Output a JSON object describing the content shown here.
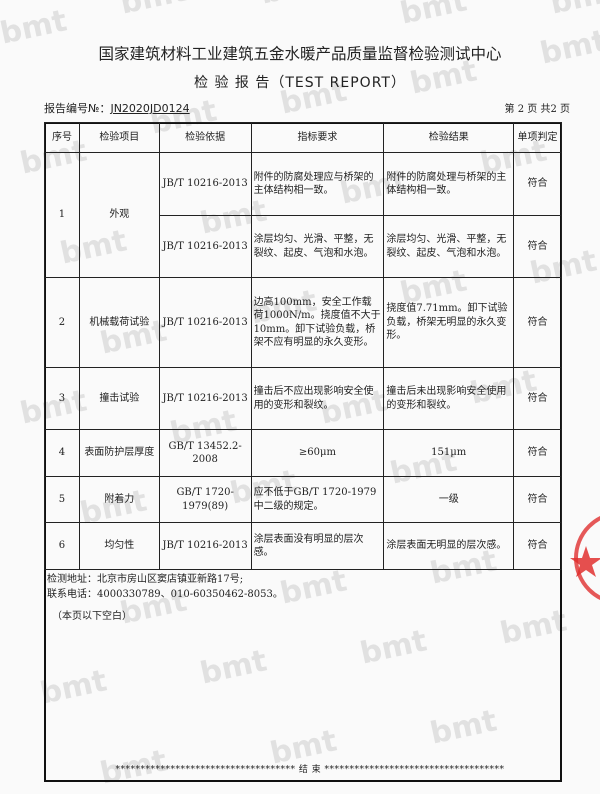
{
  "header": {
    "title": "国家建筑材料工业建筑五金水暖产品质量监督检验测试中心",
    "subtitle": "检 验 报 告（TEST REPORT）",
    "report_no_label": "报告编号№：",
    "report_no": "JN2020JD0124",
    "page_info": "第 2 页 共2 页"
  },
  "table": {
    "headers": [
      "序号",
      "检验项目",
      "检验依据",
      "指标要求",
      "检验结果",
      "单项判定"
    ],
    "rows": [
      {
        "no": "1",
        "item": "外观",
        "sub": [
          {
            "basis": "JB/T 10216-2013",
            "req": "附件的防腐处理应与桥架的主体结构相一致。",
            "result": "附件的防腐处理与桥架的主体结构相一致。",
            "verdict": "符合"
          },
          {
            "basis": "JB/T 10216-2013",
            "req": "涂层均匀、光滑、平整，无裂纹、起皮、气泡和水泡。",
            "result": "涂层均匀、光滑、平整，无裂纹、起皮、气泡和水泡。",
            "verdict": "符合"
          }
        ]
      },
      {
        "no": "2",
        "item": "机械载荷试验",
        "basis": "JB/T 10216-2013",
        "req": "边高100mm，安全工作载荷1000N/m。挠度值不大于10mm。卸下试验负载，桥架不应有明显的永久变形。",
        "result": "挠度值7.71mm。卸下试验负载，桥架无明显的永久变形。",
        "verdict": "符合"
      },
      {
        "no": "3",
        "item": "撞击试验",
        "basis": "JB/T 10216-2013",
        "req": "撞击后不应出现影响安全使用的变形和裂纹。",
        "result": "撞击后未出现影响安全使用的变形和裂纹。",
        "verdict": "符合"
      },
      {
        "no": "4",
        "item": "表面防护层厚度",
        "basis": "GB/T 13452.2-2008",
        "req": "≥60μm",
        "result": "151μm",
        "verdict": "符合"
      },
      {
        "no": "5",
        "item": "附着力",
        "basis": "GB/T 1720-1979(89)",
        "req": "应不低于GB/T 1720-1979中二级的规定。",
        "result": "一级",
        "verdict": "符合"
      },
      {
        "no": "6",
        "item": "均匀性",
        "basis": "JB/T 10216-2013",
        "req": "涂层表面没有明显的层次感。",
        "result": "涂层表面无明显的层次感。",
        "verdict": "符合"
      }
    ]
  },
  "notes": {
    "address": "检测地址：北京市房山区窦店镇亚新路17号;",
    "phone": "联系电话：4000330789、010-60350462-8053。",
    "blank": "（本页以下空白）"
  },
  "end_line": "************************************  结  束  ************************************",
  "watermark": "bmt",
  "colors": {
    "stamp": "#e0302f",
    "watermark": "#a0a0a0"
  }
}
